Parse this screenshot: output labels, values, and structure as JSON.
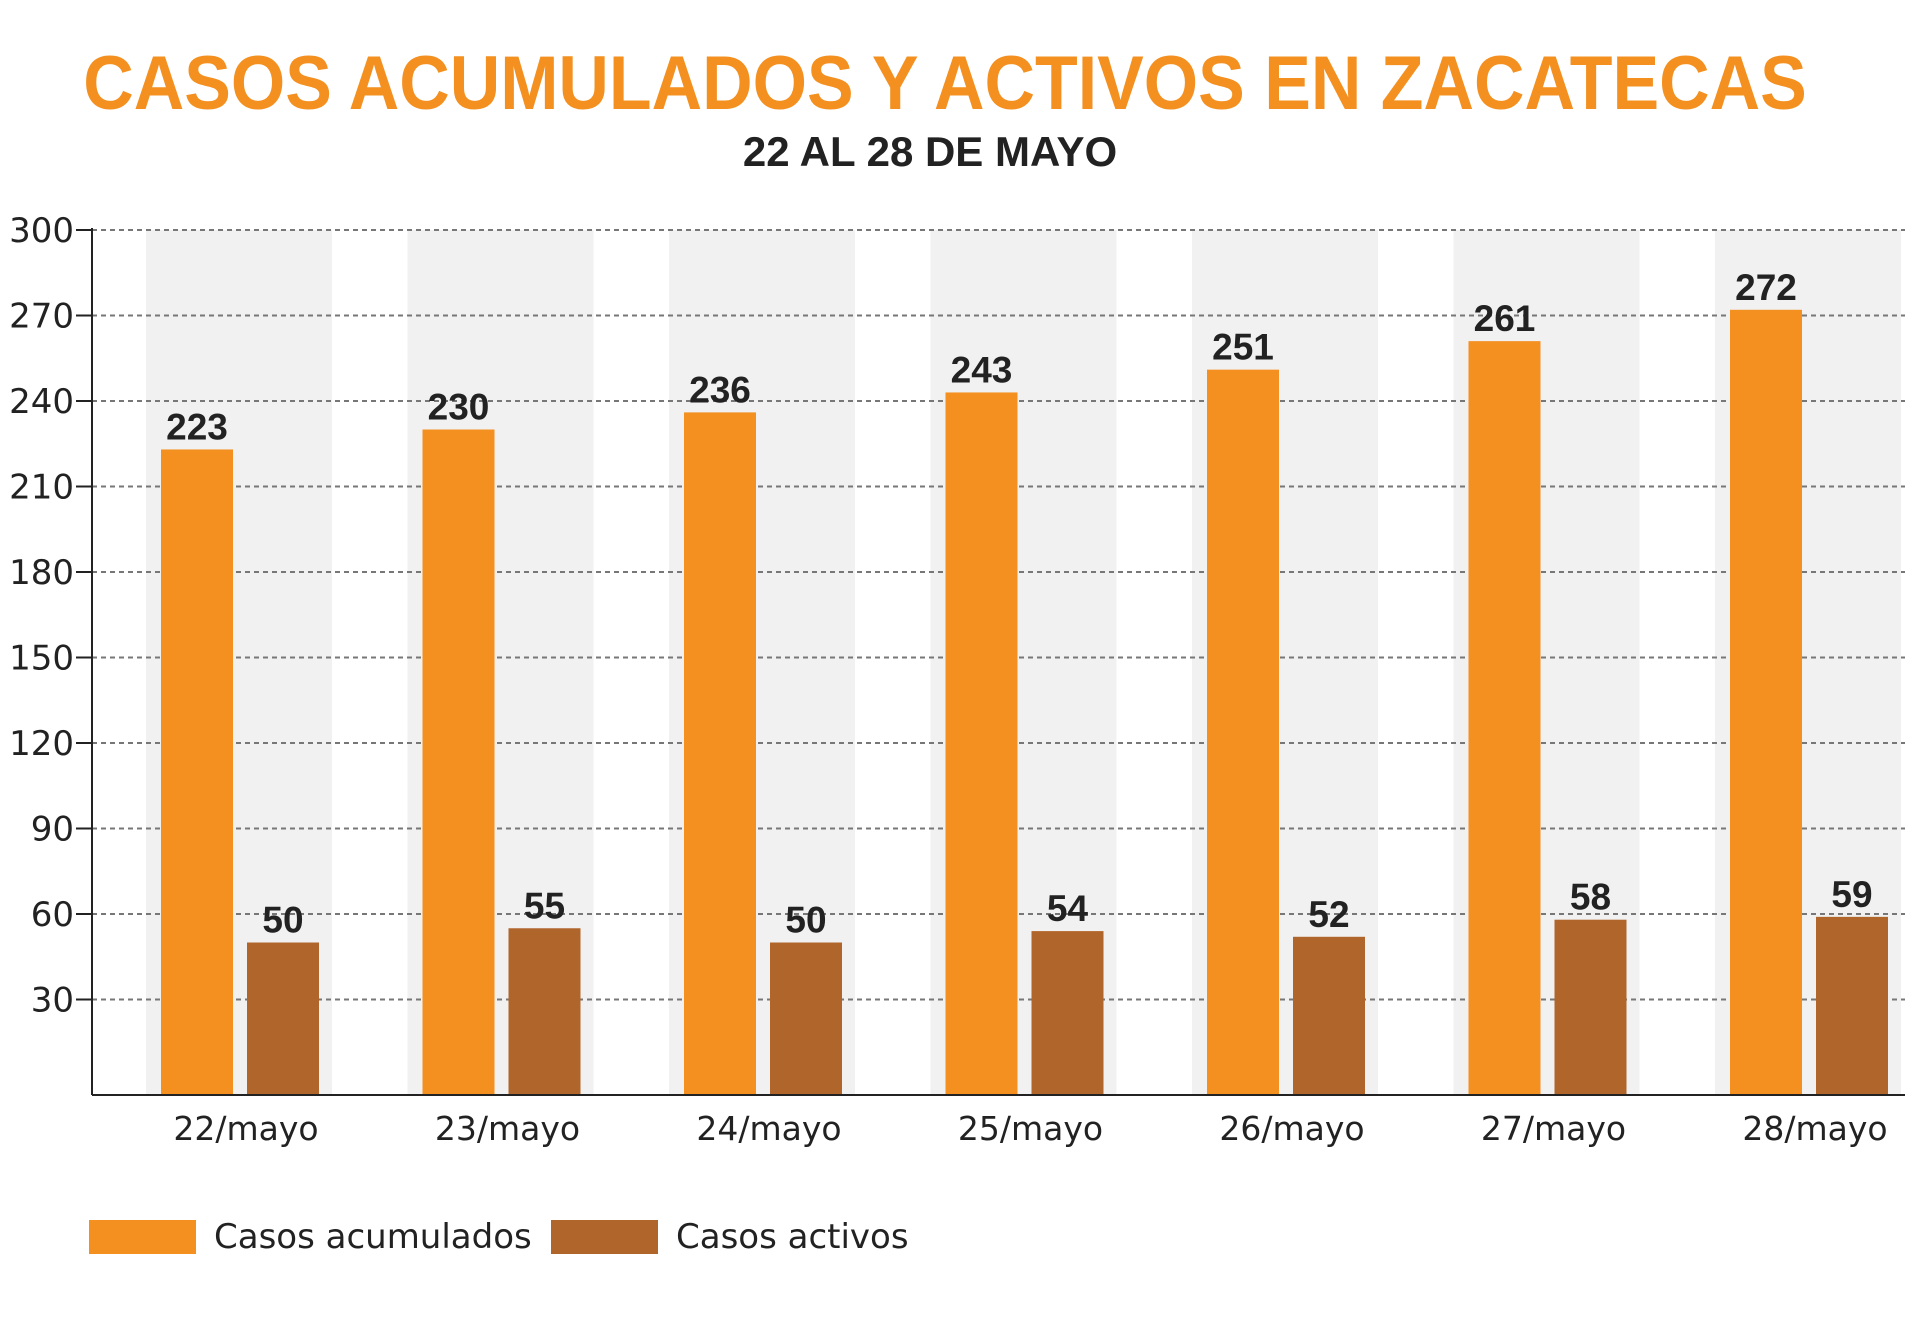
{
  "chart_data": {
    "type": "bar",
    "title": "CASOS ACUMULADOS Y ACTIVOS EN ZACATECAS",
    "subtitle": "22 AL 28 DE MAYO",
    "categories": [
      "22/mayo",
      "23/mayo",
      "24/mayo",
      "25/mayo",
      "26/mayo",
      "27/mayo",
      "28/mayo"
    ],
    "series": [
      {
        "name": "Casos acumulados",
        "color": "#F39020",
        "values": [
          223,
          230,
          236,
          243,
          251,
          261,
          272
        ]
      },
      {
        "name": "Casos activos",
        "color": "#B0652A",
        "values": [
          50,
          55,
          50,
          54,
          52,
          58,
          59
        ]
      }
    ],
    "yticks": [
      30,
      60,
      90,
      120,
      150,
      180,
      210,
      240,
      270,
      300
    ],
    "ylim": [
      0,
      300
    ],
    "grid": true,
    "legend": "bottom-left",
    "band_color": "#F1F1F1"
  }
}
